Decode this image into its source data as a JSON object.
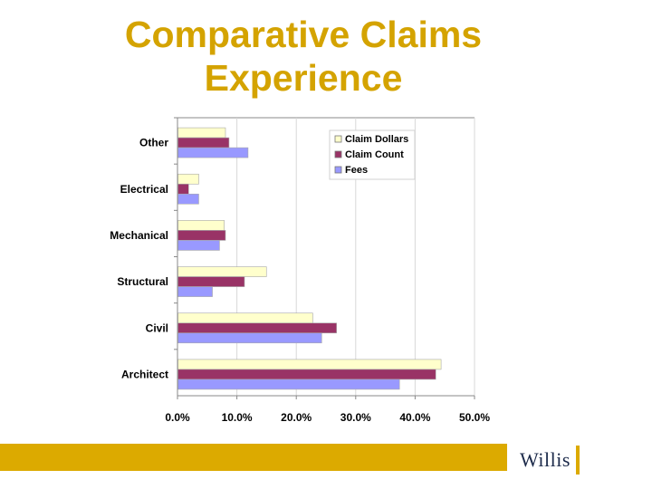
{
  "slide": {
    "title_line1": "Comparative Claims",
    "title_line2": "Experience",
    "logo_text": "Willis"
  },
  "colors": {
    "title": "#d4a300",
    "footer_bar": "#dcaa00",
    "claim_dollars": "#ffffcc",
    "claim_count": "#993366",
    "fees": "#9999ff"
  },
  "chart_data": {
    "type": "bar",
    "orientation": "horizontal",
    "title": "",
    "xlabel": "",
    "ylabel": "",
    "xlim": [
      0,
      0.5
    ],
    "x_ticks": [
      0.0,
      0.1,
      0.2,
      0.3,
      0.4,
      0.5
    ],
    "x_tick_labels": [
      "0.0%",
      "10.0%",
      "20.0%",
      "30.0%",
      "40.0%",
      "50.0%"
    ],
    "gridlines": true,
    "legend_position": "top-right",
    "categories": [
      "Other",
      "Electrical",
      "Mechanical",
      "Structural",
      "Civil",
      "Architect"
    ],
    "series": [
      {
        "name": "Claim Dollars",
        "color": "#ffffcc",
        "values": [
          0.08,
          0.035,
          0.078,
          0.149,
          0.227,
          0.443
        ]
      },
      {
        "name": "Claim Count",
        "color": "#993366",
        "values": [
          0.086,
          0.018,
          0.08,
          0.112,
          0.267,
          0.434
        ]
      },
      {
        "name": "Fees",
        "color": "#9999ff",
        "values": [
          0.118,
          0.035,
          0.07,
          0.058,
          0.242,
          0.373
        ]
      }
    ]
  }
}
